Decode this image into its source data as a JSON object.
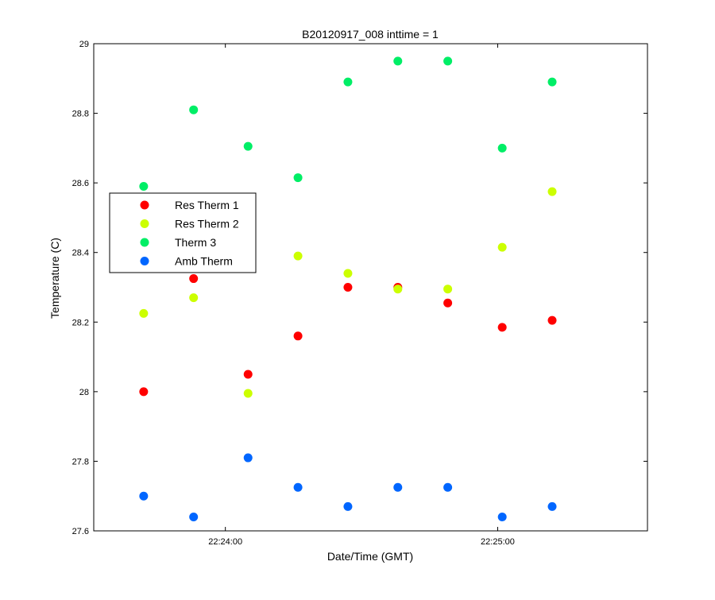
{
  "chart_data": {
    "type": "scatter",
    "title": "B20120917_008 inttime = 1",
    "xlabel": "Date/Time (GMT)",
    "ylabel": "Temperature (C)",
    "xlim": [
      "22:23:31",
      "22:25:33"
    ],
    "ylim": [
      27.6,
      29.0
    ],
    "xticks": [
      {
        "label": "22:24:00",
        "value": "22:24:00"
      },
      {
        "label": "22:25:00",
        "value": "22:25:00"
      }
    ],
    "yticks": [
      "27.6",
      "27.8",
      "28",
      "28.2",
      "28.4",
      "28.6",
      "28.8",
      "29"
    ],
    "grid": false,
    "legend_position": "left",
    "x": [
      "22:23:42",
      "22:23:53",
      "22:24:05",
      "22:24:16",
      "22:24:27",
      "22:24:38",
      "22:24:49",
      "22:25:01",
      "22:25:12"
    ],
    "series": [
      {
        "name": "Res Therm 1",
        "color": "#ff0000",
        "values": [
          28.0,
          28.325,
          28.05,
          28.16,
          28.3,
          28.3,
          28.255,
          28.185,
          28.205
        ]
      },
      {
        "name": "Res Therm 2",
        "color": "#ccff00",
        "values": [
          28.225,
          28.27,
          27.995,
          28.39,
          28.34,
          28.295,
          28.295,
          28.415,
          28.575
        ]
      },
      {
        "name": "Therm 3",
        "color": "#00ee66",
        "values": [
          28.59,
          28.81,
          28.705,
          28.615,
          28.89,
          28.95,
          28.95,
          28.7,
          28.89
        ]
      },
      {
        "name": "Amb Therm",
        "color": "#0066ff",
        "values": [
          27.7,
          27.64,
          27.81,
          27.725,
          27.67,
          27.725,
          27.725,
          27.64,
          27.67
        ]
      }
    ]
  }
}
